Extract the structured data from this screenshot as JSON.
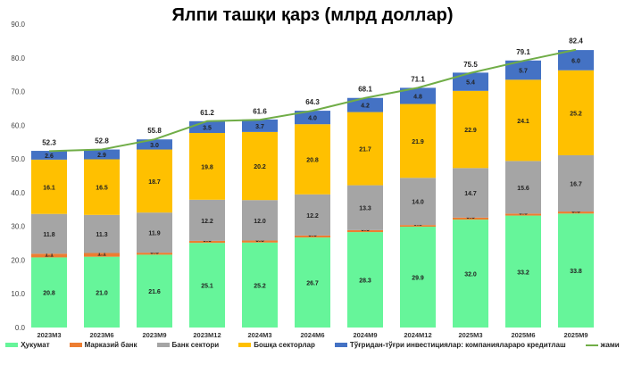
{
  "chart_data": {
    "type": "bar",
    "stacked": true,
    "title": "Ялпи ташқи қарз (млрд доллар)",
    "categories": [
      "2023M3",
      "2023M6",
      "2023M9",
      "2023M12",
      "2024M3",
      "2024M6",
      "2024M9",
      "2024M12",
      "2025M3",
      "2025M6",
      "2025M9"
    ],
    "ylim": [
      0,
      90
    ],
    "yticks": [
      "0.0",
      "10.0",
      "20.0",
      "30.0",
      "40.0",
      "50.0",
      "60.0",
      "70.0",
      "80.0",
      "90.0"
    ],
    "grid": false,
    "legend_position": "bottom",
    "series": [
      {
        "name": "Ҳукумат",
        "color": "#66F59A",
        "values": [
          20.8,
          21.0,
          21.6,
          25.1,
          25.2,
          26.7,
          28.3,
          29.9,
          32.0,
          33.2,
          33.8
        ]
      },
      {
        "name": "Марказий банк",
        "color": "#ED7D31",
        "values": [
          1.1,
          1.1,
          0.6,
          0.6,
          0.6,
          0.6,
          0.6,
          0.5,
          0.6,
          0.6,
          0.6
        ]
      },
      {
        "name": "Банк сектори",
        "color": "#A5A5A5",
        "values": [
          11.8,
          11.3,
          11.9,
          12.2,
          12.0,
          12.2,
          13.3,
          14.0,
          14.7,
          15.6,
          16.7
        ]
      },
      {
        "name": "Бошқа секторлар",
        "color": "#FFC000",
        "values": [
          16.1,
          16.5,
          18.7,
          19.8,
          20.2,
          20.8,
          21.7,
          21.9,
          22.9,
          24.1,
          25.2
        ]
      },
      {
        "name": "Тўғридан-тўғри инвестициялар: компаниялараро кредитлаш",
        "color": "#4472C4",
        "values": [
          2.6,
          2.9,
          3.0,
          3.5,
          3.7,
          4.0,
          4.2,
          4.8,
          5.4,
          5.7,
          6.0
        ]
      }
    ],
    "line": {
      "name": "жами",
      "color": "#70AD47",
      "values": [
        52.3,
        52.8,
        55.8,
        61.2,
        61.6,
        64.3,
        68.1,
        71.1,
        75.5,
        79.1,
        82.4
      ]
    }
  }
}
